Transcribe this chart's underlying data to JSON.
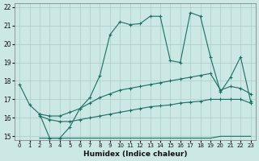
{
  "xlabel": "Humidex (Indice chaleur)",
  "bg_color": "#cce8e4",
  "grid_color": "#aaccc8",
  "line_color": "#1a6e62",
  "xlim": [
    -0.5,
    23.5
  ],
  "ylim": [
    14.8,
    22.2
  ],
  "yticks": [
    15,
    16,
    17,
    18,
    19,
    20,
    21,
    22
  ],
  "xticks": [
    0,
    1,
    2,
    3,
    4,
    5,
    6,
    7,
    8,
    9,
    10,
    11,
    12,
    13,
    14,
    15,
    16,
    17,
    18,
    19,
    20,
    21,
    22,
    23
  ],
  "line1_x": [
    0,
    1,
    2,
    3,
    4,
    5,
    6,
    7,
    8,
    9,
    10,
    11,
    12,
    13,
    14,
    15,
    16,
    17,
    18,
    19,
    20,
    21,
    22,
    23
  ],
  "line1_y": [
    17.8,
    16.7,
    16.2,
    14.9,
    14.9,
    15.5,
    16.5,
    17.1,
    18.3,
    20.5,
    21.2,
    21.05,
    21.1,
    21.5,
    21.5,
    19.1,
    19.0,
    21.7,
    21.5,
    19.3,
    17.4,
    18.2,
    19.3,
    16.9
  ],
  "line2_x": [
    2,
    3,
    4,
    5,
    6,
    7,
    8,
    9,
    10,
    11,
    12,
    13,
    14,
    15,
    16,
    17,
    18,
    19,
    20,
    21,
    22,
    23
  ],
  "line2_y": [
    16.2,
    16.1,
    16.1,
    16.3,
    16.5,
    16.8,
    17.1,
    17.3,
    17.5,
    17.6,
    17.7,
    17.8,
    17.9,
    18.0,
    18.1,
    18.2,
    18.3,
    18.4,
    17.5,
    17.7,
    17.6,
    17.3
  ],
  "line3_x": [
    2,
    3,
    4,
    5,
    6,
    7,
    8,
    9,
    10,
    11,
    12,
    13,
    14,
    15,
    16,
    17,
    18,
    19,
    20,
    21,
    22,
    23
  ],
  "line3_y": [
    16.1,
    15.9,
    15.8,
    15.8,
    15.9,
    16.0,
    16.1,
    16.2,
    16.3,
    16.4,
    16.5,
    16.6,
    16.65,
    16.7,
    16.8,
    16.85,
    16.9,
    17.0,
    17.0,
    17.0,
    17.0,
    16.8
  ],
  "line4_x": [
    2,
    3,
    4,
    5,
    6,
    7,
    8,
    9,
    10,
    11,
    12,
    13,
    14,
    15,
    16,
    17,
    18,
    19,
    20,
    21,
    22,
    23
  ],
  "line4_y": [
    14.9,
    14.9,
    14.9,
    14.9,
    14.9,
    14.9,
    14.9,
    14.9,
    14.9,
    14.9,
    14.9,
    14.9,
    14.9,
    14.9,
    14.9,
    14.9,
    14.9,
    14.9,
    15.0,
    15.0,
    15.0,
    15.0
  ]
}
